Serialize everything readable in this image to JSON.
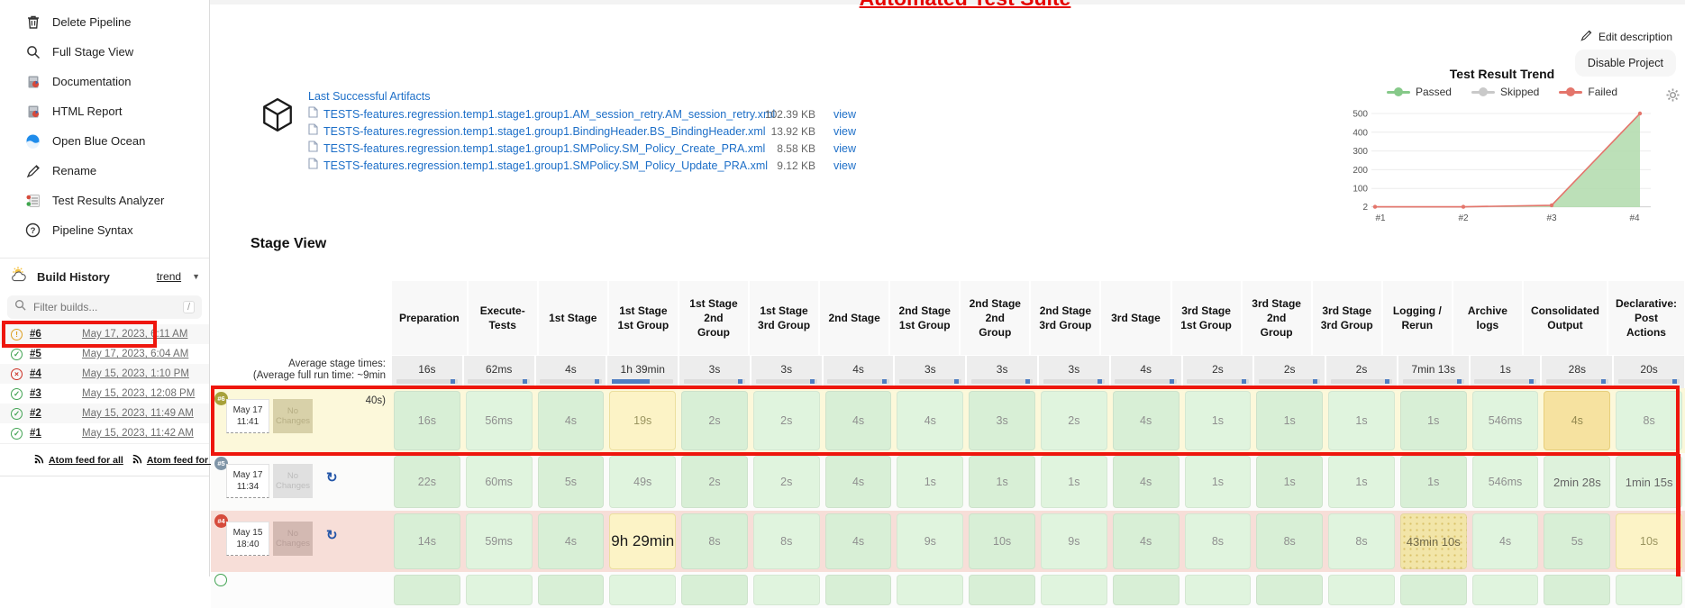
{
  "page": {
    "title": "Automated Test Suite"
  },
  "header": {
    "edit_description": "Edit description",
    "disable_project": "Disable Project"
  },
  "sidebar": {
    "menu": [
      {
        "label": "Delete Pipeline",
        "icon": "trash-icon"
      },
      {
        "label": "Full Stage View",
        "icon": "search-icon"
      },
      {
        "label": "Documentation",
        "icon": "report-icon"
      },
      {
        "label": "HTML Report",
        "icon": "report-icon"
      },
      {
        "label": "Open Blue Ocean",
        "icon": "blue-ocean-icon"
      },
      {
        "label": "Rename",
        "icon": "pencil-icon"
      },
      {
        "label": "Test Results Analyzer",
        "icon": "analyzer-icon"
      },
      {
        "label": "Pipeline Syntax",
        "icon": "question-icon"
      }
    ],
    "build_history": {
      "title": "Build History",
      "trend_label": "trend",
      "filter_placeholder": "Filter builds...",
      "shortcut_hint": "/",
      "builds": [
        {
          "number": "#6",
          "date": "May 17, 2023, 6:11 AM",
          "status": "unstable"
        },
        {
          "number": "#5",
          "date": "May 17, 2023, 6:04 AM",
          "status": "success"
        },
        {
          "number": "#4",
          "date": "May 15, 2023, 1:10 PM",
          "status": "failed"
        },
        {
          "number": "#3",
          "date": "May 15, 2023, 12:08 PM",
          "status": "success"
        },
        {
          "number": "#2",
          "date": "May 15, 2023, 11:49 AM",
          "status": "success"
        },
        {
          "number": "#1",
          "date": "May 15, 2023, 11:42 AM",
          "status": "success"
        }
      ],
      "atom_all": "Atom feed for all",
      "atom_failures": "Atom feed for failures"
    }
  },
  "artifacts": {
    "title": "Last Successful Artifacts",
    "files": [
      {
        "name": "TESTS-features.regression.temp1.stage1.group1.AM_session_retry.AM_session_retry.xml",
        "size": "102.39 KB",
        "action": "view"
      },
      {
        "name": "TESTS-features.regression.temp1.stage1.group1.BindingHeader.BS_BindingHeader.xml",
        "size": "13.92 KB",
        "action": "view"
      },
      {
        "name": "TESTS-features.regression.temp1.stage1.group1.SMPolicy.SM_Policy_Create_PRA.xml",
        "size": "8.58 KB",
        "action": "view"
      },
      {
        "name": "TESTS-features.regression.temp1.stage1.group1.SMPolicy.SM_Policy_Update_PRA.xml",
        "size": "9.12 KB",
        "action": "view"
      }
    ]
  },
  "trend": {
    "title": "Test Result Trend",
    "legend": [
      "Passed",
      "Skipped",
      "Failed"
    ]
  },
  "chart_data": {
    "type": "area",
    "title": "Test Result Trend",
    "x": [
      "#1",
      "#2",
      "#3",
      "#4"
    ],
    "series": [
      {
        "name": "Passed",
        "color": "#86c989",
        "values": [
          2,
          2,
          10,
          500
        ]
      },
      {
        "name": "Skipped",
        "color": "#c9c9c9",
        "values": [
          0,
          0,
          0,
          0
        ]
      },
      {
        "name": "Failed",
        "color": "#e4756b",
        "values": [
          0,
          0,
          2,
          8
        ]
      }
    ],
    "ylim": [
      0,
      500
    ],
    "yticks": [
      500,
      400,
      300,
      200,
      100,
      2
    ],
    "legend_position": "top",
    "grid": true
  },
  "stage_view": {
    "title": "Stage View",
    "avg_label_line1": "Average stage times:",
    "avg_label_line2": "(Average full run time: ~9min",
    "avg_label_line3": "40s)",
    "columns": [
      "Preparation",
      "Execute-Tests",
      "1st Stage",
      "1st Stage 1st Group",
      "1st Stage 2nd Group",
      "1st Stage 3rd Group",
      "2nd Stage",
      "2nd Stage 1st Group",
      "2nd Stage 2nd Group",
      "2nd Stage 3rd Group",
      "3rd Stage",
      "3rd Stage 1st Group",
      "3rd Stage 2nd Group",
      "3rd Stage 3rd Group",
      "Logging / Rerun",
      "Archive logs",
      "Consolidated Output",
      "Declarative: Post Actions"
    ],
    "average_times": [
      "16s",
      "62ms",
      "4s",
      "1h 39min",
      "3s",
      "3s",
      "4s",
      "3s",
      "3s",
      "3s",
      "4s",
      "2s",
      "2s",
      "2s",
      "7min 13s",
      "1s",
      "28s",
      "20s"
    ],
    "rows": [
      {
        "build": "#6",
        "date": "May 17",
        "time": "11:41",
        "changes": "No Changes",
        "status": "unstable",
        "has_restart": false,
        "cells": [
          {
            "v": "16s",
            "t": "g"
          },
          {
            "v": "56ms",
            "t": "g"
          },
          {
            "v": "4s",
            "t": "g"
          },
          {
            "v": "19s",
            "t": "y"
          },
          {
            "v": "2s",
            "t": "g"
          },
          {
            "v": "2s",
            "t": "g"
          },
          {
            "v": "4s",
            "t": "g"
          },
          {
            "v": "4s",
            "t": "g"
          },
          {
            "v": "3s",
            "t": "g"
          },
          {
            "v": "2s",
            "t": "g"
          },
          {
            "v": "4s",
            "t": "g"
          },
          {
            "v": "1s",
            "t": "g"
          },
          {
            "v": "1s",
            "t": "g"
          },
          {
            "v": "1s",
            "t": "g"
          },
          {
            "v": "1s",
            "t": "g"
          },
          {
            "v": "546ms",
            "t": "g"
          },
          {
            "v": "4s",
            "t": "o"
          },
          {
            "v": "8s",
            "t": "g"
          }
        ]
      },
      {
        "build": "#5",
        "date": "May 17",
        "time": "11:34",
        "changes": "No Changes",
        "status": "success",
        "has_restart": true,
        "cells": [
          {
            "v": "22s",
            "t": "g"
          },
          {
            "v": "60ms",
            "t": "g"
          },
          {
            "v": "5s",
            "t": "g"
          },
          {
            "v": "49s",
            "t": "g"
          },
          {
            "v": "2s",
            "t": "g"
          },
          {
            "v": "2s",
            "t": "g"
          },
          {
            "v": "4s",
            "t": "g"
          },
          {
            "v": "1s",
            "t": "g"
          },
          {
            "v": "1s",
            "t": "g"
          },
          {
            "v": "1s",
            "t": "g"
          },
          {
            "v": "4s",
            "t": "g"
          },
          {
            "v": "1s",
            "t": "g"
          },
          {
            "v": "1s",
            "t": "g"
          },
          {
            "v": "1s",
            "t": "g"
          },
          {
            "v": "1s",
            "t": "g"
          },
          {
            "v": "546ms",
            "t": "g"
          },
          {
            "v": "2min 28s",
            "t": "gb"
          },
          {
            "v": "1min 15s",
            "t": "gb"
          }
        ]
      },
      {
        "build": "#4",
        "date": "May 15",
        "time": "18:40",
        "changes": "No Changes",
        "status": "failed",
        "has_restart": true,
        "cells": [
          {
            "v": "14s",
            "t": "g"
          },
          {
            "v": "59ms",
            "t": "g"
          },
          {
            "v": "4s",
            "t": "g"
          },
          {
            "v": "9h 29min",
            "t": "yb"
          },
          {
            "v": "8s",
            "t": "g"
          },
          {
            "v": "8s",
            "t": "g"
          },
          {
            "v": "4s",
            "t": "g"
          },
          {
            "v": "9s",
            "t": "g"
          },
          {
            "v": "10s",
            "t": "g"
          },
          {
            "v": "9s",
            "t": "g"
          },
          {
            "v": "4s",
            "t": "g"
          },
          {
            "v": "8s",
            "t": "g"
          },
          {
            "v": "8s",
            "t": "g"
          },
          {
            "v": "8s",
            "t": "g"
          },
          {
            "v": "43min 10s",
            "t": "yd"
          },
          {
            "v": "4s",
            "t": "g"
          },
          {
            "v": "5s",
            "t": "g"
          },
          {
            "v": "10s",
            "t": "y"
          }
        ]
      }
    ]
  },
  "colors": {
    "annotation_red": "#ee160d",
    "link_blue": "#1d6fc8",
    "passed_green": "#86c989",
    "skipped_gray": "#c9c9c9",
    "failed_red": "#e4756b"
  }
}
